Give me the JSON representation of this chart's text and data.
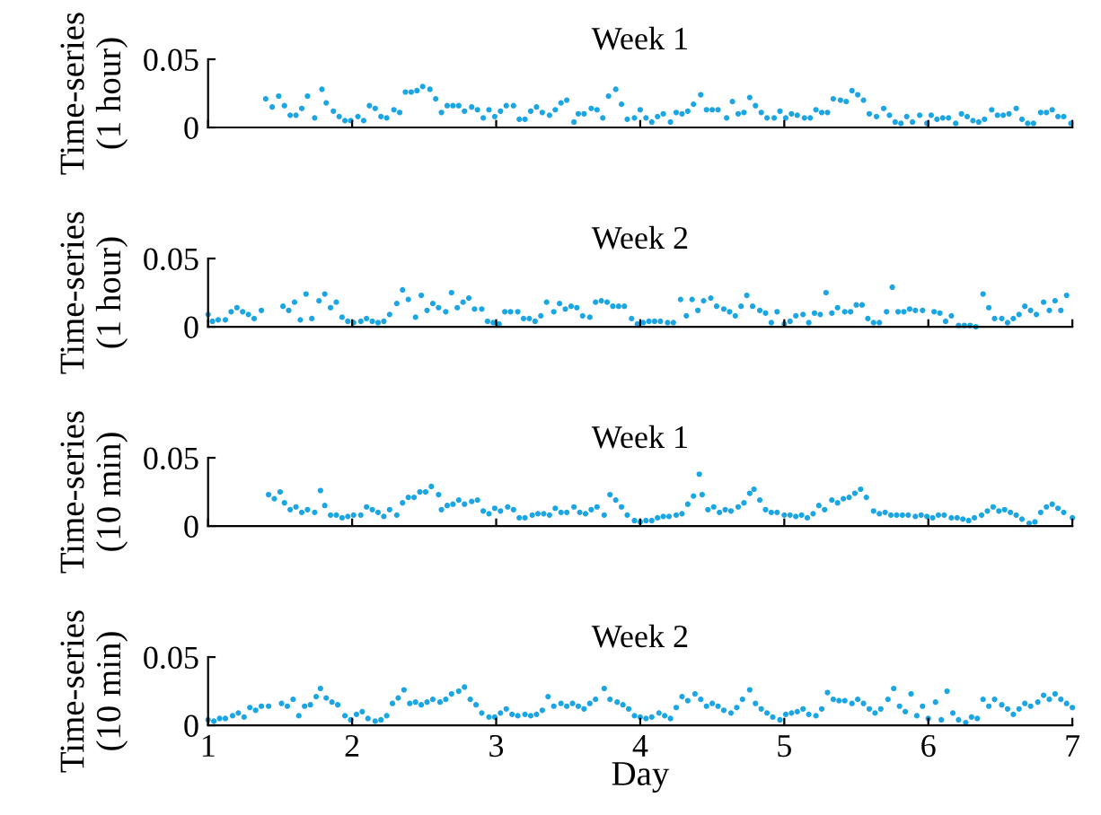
{
  "chart_data": [
    {
      "type": "scatter",
      "title": "Week 1",
      "ylabel": "Time-series\n(1 hour)",
      "xlim": [
        1,
        7
      ],
      "xticks": [
        1,
        2,
        3,
        4,
        5,
        6,
        7
      ],
      "ylim": [
        0,
        0.05
      ],
      "yticks": [
        0,
        0.05
      ],
      "tick_labels": "y",
      "grid": false,
      "legend": false,
      "marker": "circle",
      "series": [
        {
          "color": "#1ba6e3",
          "x": [
            1.4,
            1.445,
            1.49,
            1.53,
            1.57,
            1.61,
            1.65,
            1.69,
            1.74,
            1.79,
            1.82,
            1.87,
            1.91,
            1.95,
            1.99,
            2.04,
            2.08,
            2.12,
            2.16,
            2.2,
            2.24,
            2.29,
            2.33,
            2.37,
            2.41,
            2.45,
            2.49,
            2.54,
            2.58,
            2.62,
            2.66,
            2.7,
            2.74,
            2.78,
            2.83,
            2.87,
            2.91,
            2.95,
            2.99,
            3.03,
            3.07,
            3.12,
            3.16,
            3.2,
            3.24,
            3.28,
            3.32,
            3.37,
            3.41,
            3.45,
            3.49,
            3.54,
            3.57,
            3.61,
            3.66,
            3.7,
            3.74,
            3.78,
            3.83,
            3.87,
            3.91,
            3.96,
            4.0,
            4.04,
            4.08,
            4.12,
            4.16,
            4.21,
            4.25,
            4.29,
            4.33,
            4.37,
            4.42,
            4.46,
            4.5,
            4.54,
            4.6,
            4.64,
            4.68,
            4.72,
            4.76,
            4.8,
            4.84,
            4.88,
            4.93,
            4.97,
            5.01,
            5.05,
            5.09,
            5.14,
            5.18,
            5.22,
            5.26,
            5.3,
            5.34,
            5.39,
            5.43,
            5.47,
            5.51,
            5.55,
            5.59,
            5.64,
            5.69,
            5.73,
            5.77,
            5.81,
            5.85,
            5.89,
            5.94,
            5.99,
            6.02,
            6.06,
            6.1,
            6.14,
            6.19,
            6.23,
            6.27,
            6.31,
            6.35,
            6.39,
            6.44,
            6.48,
            6.52,
            6.56,
            6.61,
            6.65,
            6.69,
            6.73,
            6.78,
            6.82,
            6.86,
            6.9,
            6.94,
            6.99
          ],
          "values": [
            0.021,
            0.015,
            0.023,
            0.016,
            0.009,
            0.009,
            0.014,
            0.023,
            0.007,
            0.028,
            0.018,
            0.012,
            0.008,
            0.005,
            0.005,
            0.008,
            0.005,
            0.016,
            0.014,
            0.008,
            0.007,
            0.013,
            0.011,
            0.026,
            0.026,
            0.027,
            0.03,
            0.028,
            0.021,
            0.011,
            0.016,
            0.016,
            0.016,
            0.012,
            0.015,
            0.013,
            0.007,
            0.013,
            0.008,
            0.012,
            0.016,
            0.016,
            0.006,
            0.006,
            0.012,
            0.015,
            0.011,
            0.009,
            0.013,
            0.018,
            0.02,
            0.004,
            0.01,
            0.01,
            0.014,
            0.013,
            0.007,
            0.023,
            0.028,
            0.017,
            0.006,
            0.007,
            0.013,
            0.007,
            0.004,
            0.008,
            0.01,
            0.004,
            0.011,
            0.01,
            0.012,
            0.017,
            0.024,
            0.013,
            0.013,
            0.013,
            0.007,
            0.019,
            0.01,
            0.011,
            0.022,
            0.016,
            0.011,
            0.007,
            0.007,
            0.012,
            0.007,
            0.01,
            0.009,
            0.007,
            0.007,
            0.013,
            0.011,
            0.011,
            0.021,
            0.02,
            0.019,
            0.027,
            0.024,
            0.02,
            0.01,
            0.008,
            0.014,
            0.009,
            0.004,
            0.003,
            0.008,
            0.004,
            0.009,
            0.003,
            0.009,
            0.006,
            0.007,
            0.007,
            0.003,
            0.01,
            0.008,
            0.005,
            0.004,
            0.006,
            0.013,
            0.009,
            0.009,
            0.01,
            0.014,
            0.006,
            0.003,
            0.003,
            0.011,
            0.011,
            0.013,
            0.008,
            0.008,
            0.003
          ]
        }
      ]
    },
    {
      "type": "scatter",
      "title": "Week 2",
      "ylabel": "Time-series\n(1 hour)",
      "xlim": [
        1,
        7
      ],
      "xticks": [
        1,
        2,
        3,
        4,
        5,
        6,
        7
      ],
      "ylim": [
        0,
        0.05
      ],
      "yticks": [
        0,
        0.05
      ],
      "tick_labels": "y",
      "grid": false,
      "legend": false,
      "marker": "circle",
      "series": [
        {
          "color": "#1ba6e3",
          "x": [
            1.0,
            1.03,
            1.07,
            1.12,
            1.16,
            1.2,
            1.24,
            1.28,
            1.32,
            1.37,
            1.52,
            1.56,
            1.6,
            1.64,
            1.68,
            1.72,
            1.77,
            1.81,
            1.85,
            1.89,
            1.93,
            1.97,
            2.01,
            2.06,
            2.1,
            2.14,
            2.18,
            2.22,
            2.26,
            2.31,
            2.35,
            2.39,
            2.44,
            2.48,
            2.52,
            2.56,
            2.6,
            2.65,
            2.69,
            2.73,
            2.77,
            2.81,
            2.85,
            2.9,
            2.94,
            2.98,
            3.02,
            3.06,
            3.1,
            3.15,
            3.19,
            3.23,
            3.27,
            3.31,
            3.35,
            3.4,
            3.44,
            3.48,
            3.52,
            3.56,
            3.6,
            3.65,
            3.69,
            3.73,
            3.77,
            3.81,
            3.85,
            3.89,
            3.94,
            3.98,
            4.02,
            4.06,
            4.1,
            4.14,
            4.19,
            4.23,
            4.28,
            4.32,
            4.36,
            4.4,
            4.44,
            4.49,
            4.53,
            4.58,
            4.62,
            4.66,
            4.7,
            4.74,
            4.78,
            4.83,
            4.87,
            4.91,
            4.95,
            5.0,
            5.04,
            5.08,
            5.13,
            5.17,
            5.21,
            5.25,
            5.29,
            5.33,
            5.37,
            5.42,
            5.46,
            5.5,
            5.54,
            5.58,
            5.62,
            5.66,
            5.71,
            5.75,
            5.79,
            5.83,
            5.87,
            5.91,
            5.96,
            6.04,
            6.08,
            6.12,
            6.16,
            6.21,
            6.25,
            6.29,
            6.33,
            6.38,
            6.42,
            6.46,
            6.51,
            6.55,
            6.59,
            6.63,
            6.67,
            6.71,
            6.75,
            6.8,
            6.84,
            6.88,
            6.92,
            6.96
          ],
          "values": [
            0.009,
            0.004,
            0.005,
            0.005,
            0.011,
            0.014,
            0.011,
            0.009,
            0.006,
            0.012,
            0.015,
            0.012,
            0.018,
            0.005,
            0.024,
            0.006,
            0.019,
            0.024,
            0.014,
            0.018,
            0.007,
            0.004,
            0.003,
            0.004,
            0.006,
            0.004,
            0.003,
            0.004,
            0.009,
            0.017,
            0.027,
            0.02,
            0.007,
            0.023,
            0.012,
            0.017,
            0.014,
            0.011,
            0.025,
            0.014,
            0.018,
            0.021,
            0.013,
            0.013,
            0.004,
            0.003,
            0.002,
            0.011,
            0.011,
            0.011,
            0.006,
            0.006,
            0.004,
            0.008,
            0.018,
            0.011,
            0.017,
            0.013,
            0.015,
            0.014,
            0.008,
            0.007,
            0.018,
            0.019,
            0.018,
            0.015,
            0.015,
            0.015,
            0.006,
            0.002,
            0.003,
            0.004,
            0.004,
            0.004,
            0.003,
            0.003,
            0.02,
            0.008,
            0.02,
            0.012,
            0.019,
            0.021,
            0.015,
            0.013,
            0.011,
            0.008,
            0.015,
            0.023,
            0.015,
            0.012,
            0.01,
            0.003,
            0.011,
            0.002,
            0.004,
            0.008,
            0.009,
            0.003,
            0.01,
            0.009,
            0.025,
            0.01,
            0.014,
            0.011,
            0.011,
            0.016,
            0.016,
            0.006,
            0.003,
            0.003,
            0.011,
            0.029,
            0.011,
            0.011,
            0.013,
            0.012,
            0.012,
            0.011,
            0.01,
            0.004,
            0.008,
            0.001,
            0.001,
            0.001,
            0.0,
            0.024,
            0.014,
            0.006,
            0.006,
            0.003,
            0.006,
            0.009,
            0.015,
            0.012,
            0.009,
            0.018,
            0.012,
            0.019,
            0.012,
            0.023
          ]
        }
      ]
    },
    {
      "type": "scatter",
      "title": "Week 1",
      "ylabel": "Time-series\n(10 min)",
      "xlim": [
        1,
        7
      ],
      "xticks": [
        1,
        2,
        3,
        4,
        5,
        6,
        7
      ],
      "ylim": [
        0,
        0.05
      ],
      "yticks": [
        0,
        0.05
      ],
      "tick_labels": "y",
      "grid": false,
      "legend": false,
      "marker": "circle",
      "series": [
        {
          "color": "#1ba6e3",
          "x": [
            1.42,
            1.46,
            1.5,
            1.53,
            1.57,
            1.61,
            1.65,
            1.69,
            1.74,
            1.78,
            1.81,
            1.85,
            1.89,
            1.93,
            1.97,
            2.01,
            2.06,
            2.1,
            2.14,
            2.18,
            2.22,
            2.26,
            2.31,
            2.35,
            2.39,
            2.43,
            2.47,
            2.51,
            2.55,
            2.6,
            2.62,
            2.66,
            2.7,
            2.74,
            2.78,
            2.83,
            2.87,
            2.91,
            2.95,
            2.99,
            3.03,
            3.08,
            3.12,
            3.16,
            3.2,
            3.25,
            3.29,
            3.33,
            3.37,
            3.41,
            3.45,
            3.49,
            3.54,
            3.58,
            3.62,
            3.66,
            3.7,
            3.75,
            3.79,
            3.83,
            3.87,
            3.91,
            3.96,
            4.0,
            4.04,
            4.08,
            4.12,
            4.16,
            4.2,
            4.25,
            4.29,
            4.33,
            4.37,
            4.41,
            4.43,
            4.47,
            4.51,
            4.55,
            4.59,
            4.63,
            4.68,
            4.72,
            4.76,
            4.79,
            4.83,
            4.87,
            4.91,
            4.95,
            5.0,
            5.04,
            5.08,
            5.12,
            5.16,
            5.2,
            5.24,
            5.28,
            5.33,
            5.37,
            5.41,
            5.45,
            5.49,
            5.53,
            5.57,
            5.62,
            5.66,
            5.7,
            5.74,
            5.78,
            5.82,
            5.86,
            5.91,
            5.95,
            5.99,
            6.03,
            6.07,
            6.11,
            6.16,
            6.2,
            6.24,
            6.28,
            6.32,
            6.37,
            6.41,
            6.45,
            6.49,
            6.53,
            6.57,
            6.61,
            6.65,
            6.7,
            6.74,
            6.78,
            6.82,
            6.86,
            6.9,
            6.94,
            7.0
          ],
          "values": [
            0.023,
            0.02,
            0.025,
            0.017,
            0.012,
            0.014,
            0.01,
            0.012,
            0.01,
            0.026,
            0.015,
            0.008,
            0.008,
            0.006,
            0.007,
            0.008,
            0.008,
            0.014,
            0.012,
            0.01,
            0.007,
            0.012,
            0.008,
            0.017,
            0.021,
            0.021,
            0.025,
            0.025,
            0.029,
            0.023,
            0.012,
            0.015,
            0.016,
            0.019,
            0.016,
            0.018,
            0.019,
            0.011,
            0.009,
            0.013,
            0.011,
            0.014,
            0.012,
            0.006,
            0.006,
            0.008,
            0.009,
            0.009,
            0.008,
            0.013,
            0.01,
            0.01,
            0.014,
            0.01,
            0.009,
            0.012,
            0.014,
            0.008,
            0.023,
            0.019,
            0.014,
            0.008,
            0.004,
            0.003,
            0.004,
            0.004,
            0.006,
            0.007,
            0.007,
            0.008,
            0.009,
            0.016,
            0.022,
            0.038,
            0.023,
            0.012,
            0.014,
            0.01,
            0.012,
            0.011,
            0.014,
            0.017,
            0.024,
            0.027,
            0.019,
            0.012,
            0.01,
            0.01,
            0.008,
            0.008,
            0.007,
            0.008,
            0.006,
            0.009,
            0.015,
            0.012,
            0.019,
            0.017,
            0.02,
            0.021,
            0.024,
            0.027,
            0.021,
            0.011,
            0.009,
            0.01,
            0.008,
            0.008,
            0.008,
            0.008,
            0.007,
            0.008,
            0.007,
            0.006,
            0.008,
            0.008,
            0.006,
            0.006,
            0.005,
            0.004,
            0.006,
            0.008,
            0.011,
            0.014,
            0.011,
            0.012,
            0.01,
            0.008,
            0.005,
            0.002,
            0.003,
            0.01,
            0.014,
            0.016,
            0.013,
            0.01,
            0.006
          ]
        }
      ]
    },
    {
      "type": "scatter",
      "title": "Week 2",
      "ylabel": "Time-series\n(10 min)",
      "xlabel": "Day",
      "xlim": [
        1,
        7
      ],
      "xticks": [
        1,
        2,
        3,
        4,
        5,
        6,
        7
      ],
      "ylim": [
        0,
        0.05
      ],
      "yticks": [
        0,
        0.05
      ],
      "grid": false,
      "legend": false,
      "marker": "circle",
      "series": [
        {
          "color": "#1ba6e3",
          "x": [
            1.0,
            1.04,
            1.08,
            1.12,
            1.17,
            1.21,
            1.25,
            1.29,
            1.33,
            1.37,
            1.42,
            1.51,
            1.55,
            1.59,
            1.63,
            1.67,
            1.71,
            1.75,
            1.78,
            1.82,
            1.86,
            1.9,
            1.95,
            1.99,
            2.03,
            2.07,
            2.11,
            2.16,
            2.2,
            2.24,
            2.28,
            2.32,
            2.36,
            2.4,
            2.44,
            2.48,
            2.52,
            2.56,
            2.61,
            2.65,
            2.69,
            2.74,
            2.78,
            2.82,
            2.86,
            2.9,
            2.95,
            2.99,
            3.03,
            3.07,
            3.11,
            3.15,
            3.2,
            3.24,
            3.28,
            3.32,
            3.36,
            3.4,
            3.45,
            3.49,
            3.53,
            3.57,
            3.61,
            3.65,
            3.69,
            3.75,
            3.79,
            3.84,
            3.88,
            3.92,
            3.96,
            4.0,
            4.04,
            4.08,
            4.13,
            4.17,
            4.21,
            4.25,
            4.29,
            4.33,
            4.38,
            4.42,
            4.46,
            4.5,
            4.54,
            4.58,
            4.63,
            4.67,
            4.71,
            4.76,
            4.8,
            4.84,
            4.88,
            4.92,
            4.97,
            5.01,
            5.05,
            5.09,
            5.13,
            5.17,
            5.22,
            5.26,
            5.3,
            5.34,
            5.38,
            5.42,
            5.47,
            5.51,
            5.55,
            5.59,
            5.63,
            5.67,
            5.72,
            5.76,
            5.8,
            5.84,
            5.88,
            5.92,
            5.96,
            6.0,
            6.05,
            6.09,
            6.13,
            6.17,
            6.21,
            6.26,
            6.3,
            6.34,
            6.38,
            6.42,
            6.46,
            6.51,
            6.55,
            6.59,
            6.63,
            6.67,
            6.71,
            6.76,
            6.8,
            6.84,
            6.88,
            6.92,
            6.96,
            7.0
          ],
          "values": [
            0.004,
            0.003,
            0.005,
            0.005,
            0.007,
            0.009,
            0.006,
            0.013,
            0.011,
            0.014,
            0.014,
            0.016,
            0.014,
            0.019,
            0.007,
            0.014,
            0.015,
            0.021,
            0.027,
            0.02,
            0.017,
            0.015,
            0.007,
            0.004,
            0.008,
            0.01,
            0.005,
            0.003,
            0.004,
            0.007,
            0.016,
            0.02,
            0.026,
            0.016,
            0.017,
            0.015,
            0.017,
            0.019,
            0.017,
            0.019,
            0.023,
            0.025,
            0.028,
            0.019,
            0.015,
            0.009,
            0.006,
            0.006,
            0.009,
            0.012,
            0.008,
            0.007,
            0.008,
            0.007,
            0.008,
            0.011,
            0.021,
            0.014,
            0.016,
            0.014,
            0.016,
            0.014,
            0.012,
            0.016,
            0.019,
            0.027,
            0.019,
            0.017,
            0.015,
            0.012,
            0.007,
            0.006,
            0.005,
            0.006,
            0.009,
            0.007,
            0.005,
            0.013,
            0.021,
            0.018,
            0.023,
            0.019,
            0.014,
            0.016,
            0.014,
            0.011,
            0.009,
            0.013,
            0.019,
            0.026,
            0.016,
            0.012,
            0.009,
            0.006,
            0.004,
            0.008,
            0.009,
            0.01,
            0.012,
            0.008,
            0.007,
            0.012,
            0.024,
            0.019,
            0.018,
            0.018,
            0.016,
            0.019,
            0.016,
            0.012,
            0.009,
            0.012,
            0.019,
            0.027,
            0.014,
            0.01,
            0.023,
            0.007,
            0.014,
            0.005,
            0.017,
            0.004,
            0.025,
            0.009,
            0.004,
            0.002,
            0.006,
            0.005,
            0.019,
            0.014,
            0.019,
            0.015,
            0.012,
            0.008,
            0.012,
            0.016,
            0.014,
            0.017,
            0.022,
            0.019,
            0.023,
            0.019,
            0.016,
            0.013
          ]
        }
      ]
    }
  ]
}
